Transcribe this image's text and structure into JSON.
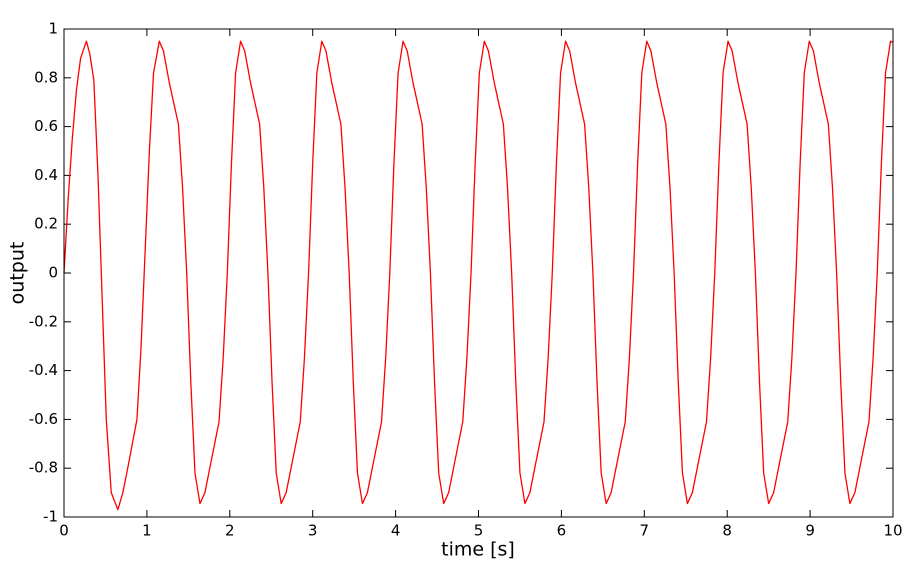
{
  "chart_data": {
    "type": "line",
    "xlabel": "time [s]",
    "ylabel": "output",
    "x": [
      0,
      0.05,
      0.1,
      0.15,
      0.2,
      0.27,
      0.31,
      0.36,
      0.41,
      0.46,
      0.51,
      0.57,
      0.65,
      0.71,
      0.78,
      0.88,
      0.93,
      0.98,
      1.03,
      1.08,
      1.15,
      1.2,
      1.27,
      1.38,
      1.43,
      1.48,
      1.53,
      1.58,
      1.64,
      1.7,
      1.77,
      1.87,
      1.92,
      1.97,
      2.02,
      2.07,
      2.13,
      2.18,
      2.25,
      2.36,
      2.41,
      2.46,
      2.51,
      2.56,
      2.62,
      2.68,
      2.75,
      2.85,
      2.9,
      2.95,
      3.0,
      3.05,
      3.11,
      3.16,
      3.23,
      3.34,
      3.39,
      3.44,
      3.49,
      3.54,
      3.6,
      3.66,
      3.73,
      3.83,
      3.88,
      3.93,
      3.98,
      4.03,
      4.09,
      4.14,
      4.21,
      4.32,
      4.37,
      4.42,
      4.47,
      4.52,
      4.58,
      4.64,
      4.71,
      4.81,
      4.86,
      4.91,
      4.96,
      5.01,
      5.07,
      5.12,
      5.19,
      5.3,
      5.35,
      5.4,
      5.45,
      5.5,
      5.56,
      5.62,
      5.69,
      5.79,
      5.84,
      5.89,
      5.94,
      5.99,
      6.05,
      6.1,
      6.17,
      6.28,
      6.33,
      6.38,
      6.43,
      6.48,
      6.54,
      6.6,
      6.67,
      6.77,
      6.82,
      6.87,
      6.92,
      6.97,
      7.03,
      7.08,
      7.15,
      7.26,
      7.31,
      7.36,
      7.41,
      7.46,
      7.52,
      7.58,
      7.65,
      7.75,
      7.8,
      7.85,
      7.9,
      7.95,
      8.01,
      8.06,
      8.13,
      8.24,
      8.29,
      8.34,
      8.39,
      8.44,
      8.5,
      8.56,
      8.63,
      8.73,
      8.78,
      8.83,
      8.88,
      8.93,
      8.99,
      9.04,
      9.11,
      9.22,
      9.27,
      9.32,
      9.37,
      9.42,
      9.48,
      9.54,
      9.61,
      9.71,
      9.76,
      9.81,
      9.86,
      9.91,
      9.97,
      10
    ],
    "series": [
      {
        "name": "output",
        "color": "#ff0000",
        "values": [
          0,
          0.3,
          0.55,
          0.75,
          0.88,
          0.95,
          0.9,
          0.79,
          0.4,
          -0.1,
          -0.6,
          -0.9,
          -0.97,
          -0.9,
          -0.78,
          -0.6,
          -0.3,
          0.1,
          0.5,
          0.82,
          0.95,
          0.91,
          0.78,
          0.61,
          0.35,
          0,
          -0.45,
          -0.82,
          -0.945,
          -0.9,
          -0.78,
          -0.61,
          -0.35,
          0,
          0.45,
          0.82,
          0.95,
          0.91,
          0.78,
          0.61,
          0.35,
          0,
          -0.45,
          -0.82,
          -0.945,
          -0.9,
          -0.78,
          -0.61,
          -0.35,
          0,
          0.45,
          0.82,
          0.95,
          0.91,
          0.78,
          0.61,
          0.35,
          0,
          -0.45,
          -0.82,
          -0.945,
          -0.9,
          -0.78,
          -0.61,
          -0.35,
          0,
          0.45,
          0.82,
          0.95,
          0.91,
          0.78,
          0.61,
          0.35,
          0,
          -0.45,
          -0.82,
          -0.945,
          -0.9,
          -0.78,
          -0.61,
          -0.35,
          0,
          0.45,
          0.82,
          0.95,
          0.91,
          0.78,
          0.61,
          0.35,
          0,
          -0.45,
          -0.82,
          -0.945,
          -0.9,
          -0.78,
          -0.61,
          -0.35,
          0,
          0.45,
          0.82,
          0.95,
          0.91,
          0.78,
          0.61,
          0.35,
          0,
          -0.45,
          -0.82,
          -0.945,
          -0.9,
          -0.78,
          -0.61,
          -0.35,
          0,
          0.45,
          0.82,
          0.95,
          0.91,
          0.78,
          0.61,
          0.35,
          0,
          -0.45,
          -0.82,
          -0.945,
          -0.9,
          -0.78,
          -0.61,
          -0.35,
          0,
          0.45,
          0.82,
          0.95,
          0.91,
          0.78,
          0.61,
          0.35,
          0,
          -0.45,
          -0.82,
          -0.945,
          -0.9,
          -0.78,
          -0.61,
          -0.35,
          0,
          0.45,
          0.82,
          0.95,
          0.91,
          0.78,
          0.61,
          0.35,
          0,
          -0.45,
          -0.82,
          -0.945,
          -0.9,
          -0.78,
          -0.61,
          -0.35,
          0,
          0.45,
          0.82,
          0.95,
          0.945
        ]
      }
    ],
    "xlim": [
      0,
      10
    ],
    "xticks": [
      0,
      1,
      2,
      3,
      4,
      5,
      6,
      7,
      8,
      9,
      10
    ],
    "ylim": [
      -1,
      1
    ],
    "yticks": [
      -1,
      -0.8,
      -0.6,
      -0.4,
      -0.2,
      0,
      0.2,
      0.4,
      0.6,
      0.8,
      1
    ],
    "grid": false
  }
}
